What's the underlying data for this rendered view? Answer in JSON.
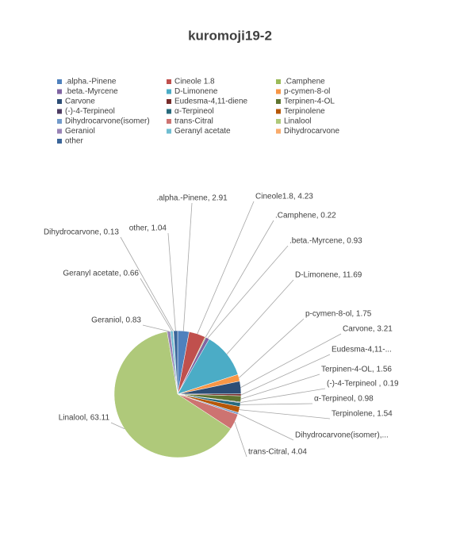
{
  "chart_data": {
    "type": "pie",
    "title": "kuromoji19-2",
    "categories": [
      ".alpha.-Pinene",
      "Cineole 1.8",
      ".Camphene",
      ".beta.-Myrcene",
      "D-Limonene",
      "p-cymen-8-ol",
      "Carvone",
      "Eudesma-4,11-diene",
      "Terpinen-4-OL",
      "(-)-4-Terpineol",
      "α-Terpineol",
      "Terpinolene",
      "Dihydrocarvone(isomer)",
      "trans-Citral",
      "Linalool",
      "Geraniol",
      "Geranyl acetate",
      "Dihydrocarvone",
      "other"
    ],
    "values": [
      2.91,
      4.23,
      0.22,
      0.93,
      11.69,
      1.75,
      3.21,
      0.5,
      1.56,
      0.19,
      0.98,
      1.54,
      0.48,
      4.04,
      63.11,
      0.83,
      0.66,
      0.13,
      1.04
    ],
    "value_labels": [
      ".alpha.-Pinene, 2.91",
      "Cineole1.8, 4.23",
      ".Camphene, 0.22",
      ".beta.-Myrcene, 0.93",
      "D-Limonene, 11.69",
      "p-cymen-8-ol, 1.75",
      "Carvone, 3.21",
      "Eudesma-4,11-...",
      "Terpinen-4-OL, 1.56",
      "(-)-4-Terpineol , 0.19",
      "α-Terpineol, 0.98",
      "Terpinolene, 1.54",
      "Dihydrocarvone(isomer),...",
      "trans-Citral, 4.04",
      "Linalool, 63.11",
      "Geraniol, 0.83",
      "Geranyl acetate, 0.66",
      "Dihydrocarvone, 0.13",
      "other, 1.04"
    ],
    "colors": [
      "#4F81BD",
      "#C0504D",
      "#9BBB59",
      "#8064A2",
      "#4BACC6",
      "#F79646",
      "#2C4D75",
      "#772C2A",
      "#5F7530",
      "#4D3B62",
      "#276A7C",
      "#B65708",
      "#729ACA",
      "#CD7371",
      "#AFC97A",
      "#9983B5",
      "#6FBDD1",
      "#F9AB6B",
      "#3A6599"
    ],
    "legend": "top"
  }
}
